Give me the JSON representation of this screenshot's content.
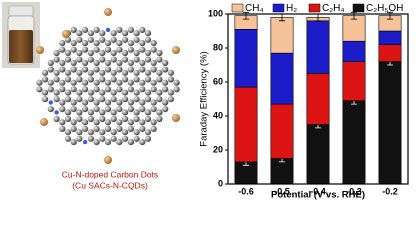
{
  "chart_data": {
    "type": "stacked-bar",
    "caption": [
      "Cu-N-doped Carbon Dots",
      "(Cu SACs-N-CQDs)"
    ],
    "xlabel": "Potential (V vs.  RHE)",
    "ylabel": "Faraday Efficiency (%)",
    "categories": [
      "-0.6",
      "-0.5",
      "-0.4",
      "-0.3",
      "-0.2"
    ],
    "series": [
      {
        "name": "CH₄",
        "color": "#f6c29a",
        "values": [
          8,
          21,
          2,
          15,
          9
        ],
        "errors": [
          2,
          2,
          2,
          2,
          2
        ]
      },
      {
        "name": "H₂",
        "color": "#1c1cc8",
        "values": [
          34,
          30,
          31,
          12,
          8
        ]
      },
      {
        "name": "C₂H₄",
        "color": "#dc1414",
        "values": [
          44,
          32,
          30,
          23,
          10
        ]
      },
      {
        "name": "C₂H₅OH",
        "color": "#111111",
        "values": [
          13,
          15,
          35,
          49,
          72
        ],
        "errors": [
          2,
          2,
          2,
          2,
          2
        ]
      }
    ],
    "ylim": [
      0,
      100
    ],
    "yticks": [
      0,
      20,
      40,
      60,
      80,
      100
    ]
  }
}
